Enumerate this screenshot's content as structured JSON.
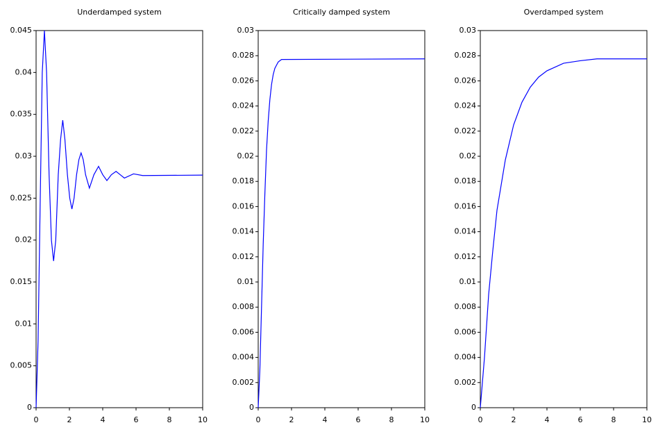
{
  "chart_data": [
    {
      "type": "line",
      "title": "Underdamped system",
      "xlim": [
        0,
        10
      ],
      "xticks": [
        0,
        2,
        4,
        6,
        8,
        10
      ],
      "ylim": [
        0,
        0.045
      ],
      "yticks": [
        0,
        0.005,
        0.01,
        0.015,
        0.02,
        0.025,
        0.03,
        0.035,
        0.04,
        0.045
      ],
      "series": [
        {
          "color": "#0000ff",
          "x": [
            0,
            0.12,
            0.25,
            0.37,
            0.5,
            0.63,
            0.78,
            0.92,
            1.05,
            1.18,
            1.33,
            1.47,
            1.6,
            1.73,
            1.88,
            2.02,
            2.15,
            2.28,
            2.43,
            2.57,
            2.7,
            2.83,
            2.97,
            3.2,
            3.47,
            3.75,
            4.0,
            4.25,
            4.52,
            4.8,
            5.05,
            5.3,
            5.85,
            6.4,
            10
          ],
          "values": [
            0,
            0.008,
            0.025,
            0.04,
            0.045,
            0.04,
            0.0278,
            0.02,
            0.0175,
            0.02,
            0.0278,
            0.032,
            0.0343,
            0.032,
            0.0278,
            0.025,
            0.0237,
            0.025,
            0.0278,
            0.0296,
            0.0304,
            0.0296,
            0.0278,
            0.0262,
            0.0278,
            0.0288,
            0.0278,
            0.0271,
            0.0278,
            0.0282,
            0.0278,
            0.0274,
            0.0279,
            0.0277,
            0.02775
          ]
        }
      ]
    },
    {
      "type": "line",
      "title": "Critically damped system",
      "xlim": [
        0,
        10
      ],
      "xticks": [
        0,
        2,
        4,
        6,
        8,
        10
      ],
      "ylim": [
        0,
        0.03
      ],
      "yticks": [
        0,
        0.002,
        0.004,
        0.006,
        0.008,
        0.01,
        0.012,
        0.014,
        0.016,
        0.018,
        0.02,
        0.022,
        0.024,
        0.026,
        0.028,
        0.03
      ],
      "series": [
        {
          "color": "#0000ff",
          "x": [
            0,
            0.1,
            0.2,
            0.3,
            0.4,
            0.5,
            0.6,
            0.7,
            0.8,
            0.9,
            1.0,
            1.2,
            1.4,
            10
          ],
          "values": [
            0,
            0.003,
            0.008,
            0.013,
            0.017,
            0.0205,
            0.0228,
            0.0245,
            0.0257,
            0.0265,
            0.027,
            0.0275,
            0.0277,
            0.02775
          ]
        }
      ]
    },
    {
      "type": "line",
      "title": "Overdamped system",
      "xlim": [
        0,
        10
      ],
      "xticks": [
        0,
        2,
        4,
        6,
        8,
        10
      ],
      "ylim": [
        0,
        0.03
      ],
      "yticks": [
        0,
        0.002,
        0.004,
        0.006,
        0.008,
        0.01,
        0.012,
        0.014,
        0.016,
        0.018,
        0.02,
        0.022,
        0.024,
        0.026,
        0.028,
        0.03
      ],
      "series": [
        {
          "color": "#0000ff",
          "x": [
            0,
            0.25,
            0.5,
            0.75,
            1,
            1.5,
            2,
            2.5,
            3,
            3.5,
            4,
            5,
            6,
            7,
            10
          ],
          "values": [
            0,
            0.004,
            0.009,
            0.0125,
            0.0157,
            0.0197,
            0.0225,
            0.0243,
            0.0255,
            0.0263,
            0.0268,
            0.0274,
            0.0276,
            0.02775,
            0.02775
          ]
        }
      ]
    }
  ]
}
